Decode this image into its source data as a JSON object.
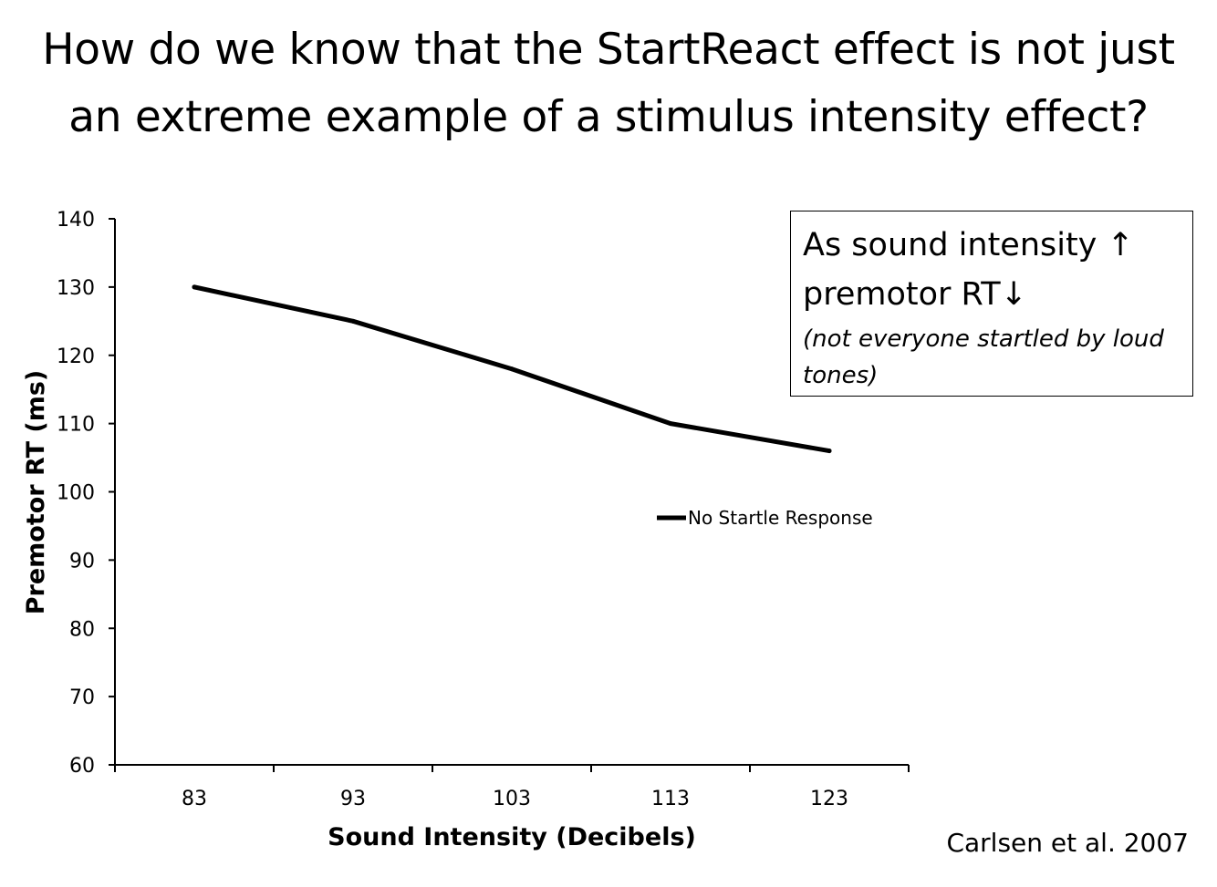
{
  "title": {
    "line1": "How do we know that the StartReact effect is not just",
    "line2": "an extreme example of a stimulus intensity effect?"
  },
  "callout": {
    "line1": "As sound intensity ↑",
    "line2": "premotor RT↓",
    "note": "(not everyone startled by loud tones)"
  },
  "citation": "Carlsen et al. 2007",
  "chart_data": {
    "type": "line",
    "title": "",
    "xlabel": "Sound Intensity (Decibels)",
    "ylabel": "Premotor RT (ms)",
    "categories": [
      "83",
      "93",
      "103",
      "113",
      "123"
    ],
    "series": [
      {
        "name": "No Startle Response",
        "values": [
          130,
          125,
          118,
          110,
          106
        ]
      }
    ],
    "ylim": [
      60,
      140
    ],
    "yticks": [
      60,
      70,
      80,
      90,
      100,
      110,
      120,
      130,
      140
    ],
    "grid": false,
    "legend": "center-right",
    "line_color": "#000000"
  }
}
